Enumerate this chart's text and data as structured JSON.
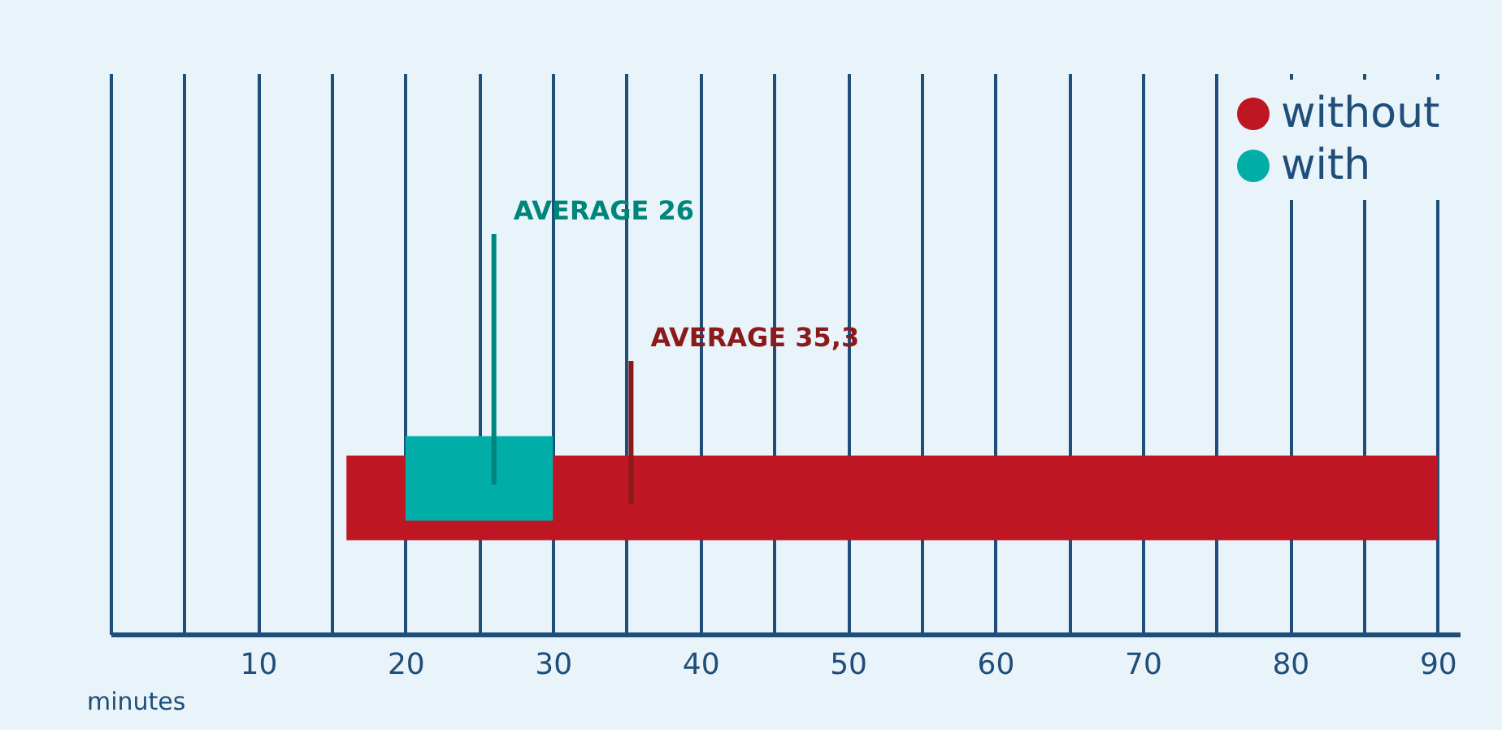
{
  "chart_data": {
    "type": "bar",
    "orientation": "horizontal",
    "categories": [
      null
    ],
    "series": [
      {
        "name": "without",
        "color": "#be1622",
        "values": [
          74
        ],
        "base": [
          16
        ]
      },
      {
        "name": "with",
        "color": "#00ada7",
        "values": [
          10
        ],
        "base": [
          20
        ]
      }
    ],
    "xlabel": "minutes",
    "xlim": [
      0,
      91.5
    ],
    "xticks": [
      {
        "value": 0,
        "label": null
      },
      {
        "value": 5,
        "label": null
      },
      10,
      {
        "value": 15,
        "label": null
      },
      20,
      {
        "value": 25,
        "label": null
      },
      30,
      {
        "value": 35,
        "label": null
      },
      40,
      {
        "value": 45,
        "label": null
      },
      50,
      {
        "value": 55,
        "label": null
      },
      60,
      {
        "value": 65,
        "label": null
      },
      70,
      {
        "value": 75,
        "label": null
      },
      80,
      {
        "value": 85,
        "label": null
      },
      90
    ],
    "ref_lines": [
      {
        "axis": "x",
        "value": 26,
        "label": "AVERAGE 26",
        "color": "#00857a"
      },
      {
        "axis": "x",
        "value": 35.3,
        "label": "AVERAGE 35,3",
        "color": "#8b1a1a"
      }
    ],
    "grid": "x",
    "legend": "top right",
    "tick_labels": "x"
  }
}
